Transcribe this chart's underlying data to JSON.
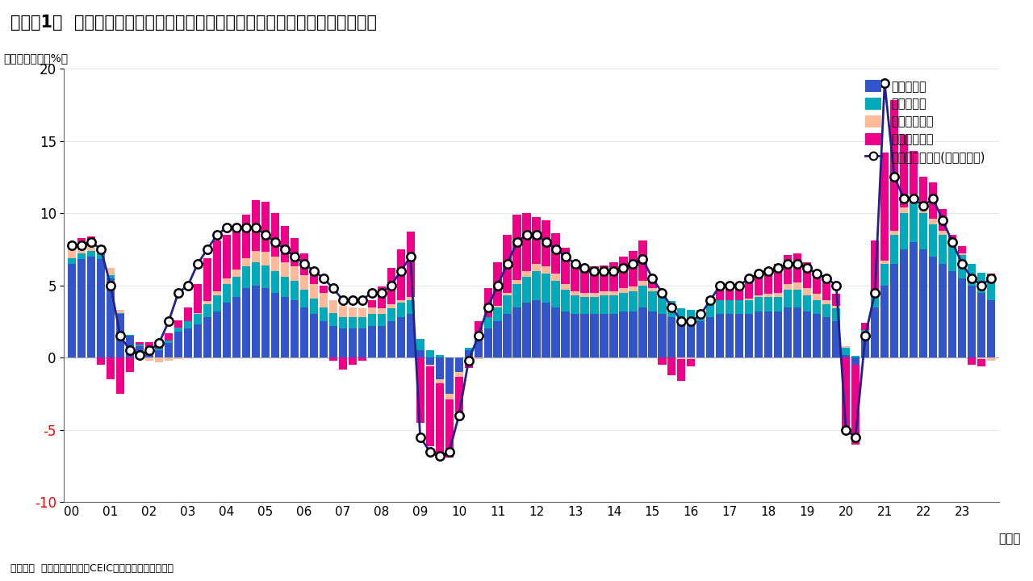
{
  "title": "（図表1）  米国経済におけるグロス付加価値増加率とその分配面からの寄与度",
  "ylabel": "（前年同期比、%）",
  "xlabel_suffix": "（年）",
  "source": "（出所）  米国商務省資料やCEICよりインベスコが推計",
  "legend_labels": [
    "労働コスト",
    "資本コスト",
    "利払いコスト",
    "税引き前利益",
    "グロス付加価値(金融を除く)"
  ],
  "colors": {
    "labor": "#3355CC",
    "capital": "#00AABB",
    "interest": "#FFBB99",
    "profit": "#EE0088",
    "line": "#222288"
  },
  "ylim": [
    -10,
    20
  ],
  "yticks": [
    -10,
    -5,
    0,
    5,
    10,
    15,
    20
  ],
  "years": [
    "00",
    "01",
    "02",
    "03",
    "04",
    "05",
    "06",
    "07",
    "08",
    "09",
    "10",
    "11",
    "12",
    "13",
    "14",
    "15",
    "16",
    "17",
    "18",
    "19",
    "20",
    "21",
    "22",
    "23"
  ],
  "n_bars": 96,
  "labor": [
    6.5,
    6.8,
    7.0,
    6.8,
    5.5,
    3.0,
    1.5,
    0.8,
    0.5,
    0.5,
    1.0,
    1.8,
    2.0,
    2.3,
    2.8,
    3.2,
    3.8,
    4.2,
    4.8,
    5.0,
    4.8,
    4.5,
    4.2,
    4.0,
    3.5,
    3.0,
    2.5,
    2.2,
    2.0,
    2.0,
    2.0,
    2.2,
    2.2,
    2.5,
    2.8,
    3.0,
    0.5,
    -0.5,
    -1.5,
    -2.5,
    -1.0,
    0.5,
    1.2,
    2.0,
    2.5,
    3.0,
    3.5,
    3.8,
    4.0,
    3.8,
    3.5,
    3.2,
    3.0,
    3.0,
    3.0,
    3.0,
    3.0,
    3.2,
    3.2,
    3.5,
    3.2,
    3.0,
    2.8,
    2.5,
    2.5,
    2.5,
    2.8,
    3.0,
    3.0,
    3.0,
    3.0,
    3.2,
    3.2,
    3.2,
    3.5,
    3.5,
    3.2,
    3.0,
    2.8,
    2.5,
    0.2,
    -0.5,
    1.5,
    3.5,
    5.0,
    6.5,
    7.5,
    8.0,
    7.5,
    7.0,
    6.5,
    6.0,
    5.5,
    5.0,
    4.5,
    4.0
  ],
  "capital": [
    0.4,
    0.4,
    0.4,
    0.4,
    0.2,
    0.1,
    0.1,
    0.1,
    0.1,
    0.1,
    0.2,
    0.3,
    0.5,
    0.7,
    0.9,
    1.1,
    1.3,
    1.4,
    1.5,
    1.6,
    1.6,
    1.5,
    1.4,
    1.3,
    1.2,
    1.1,
    1.0,
    0.9,
    0.8,
    0.8,
    0.8,
    0.8,
    0.8,
    0.9,
    1.0,
    1.0,
    0.8,
    0.5,
    0.2,
    0.0,
    0.0,
    0.2,
    0.5,
    0.8,
    1.0,
    1.3,
    1.6,
    1.8,
    2.0,
    2.0,
    1.8,
    1.5,
    1.3,
    1.2,
    1.2,
    1.3,
    1.3,
    1.3,
    1.4,
    1.5,
    1.4,
    1.3,
    1.1,
    0.9,
    0.8,
    0.8,
    0.9,
    1.0,
    1.0,
    1.0,
    1.0,
    1.0,
    1.0,
    1.0,
    1.2,
    1.2,
    1.1,
    1.0,
    0.9,
    0.9,
    0.5,
    0.1,
    0.4,
    1.0,
    1.5,
    2.0,
    2.5,
    2.8,
    2.5,
    2.2,
    2.0,
    1.8,
    1.6,
    1.5,
    1.4,
    1.3
  ],
  "interest": [
    0.8,
    0.8,
    0.7,
    0.6,
    0.5,
    0.2,
    0.0,
    -0.1,
    -0.2,
    -0.3,
    -0.2,
    -0.1,
    0.0,
    0.1,
    0.2,
    0.3,
    0.4,
    0.5,
    0.6,
    0.8,
    0.9,
    1.0,
    1.0,
    1.0,
    1.0,
    1.0,
    1.0,
    0.9,
    0.8,
    0.7,
    0.6,
    0.5,
    0.4,
    0.3,
    0.2,
    0.2,
    0.0,
    -0.1,
    -0.3,
    -0.4,
    -0.3,
    -0.2,
    -0.1,
    0.0,
    0.1,
    0.2,
    0.3,
    0.4,
    0.5,
    0.5,
    0.5,
    0.4,
    0.3,
    0.3,
    0.3,
    0.3,
    0.3,
    0.3,
    0.3,
    0.3,
    0.2,
    0.1,
    0.0,
    -0.1,
    -0.1,
    0.0,
    0.0,
    0.0,
    0.0,
    0.0,
    0.1,
    0.1,
    0.2,
    0.3,
    0.4,
    0.5,
    0.5,
    0.4,
    0.3,
    0.2,
    0.1,
    0.0,
    0.0,
    0.1,
    0.2,
    0.3,
    0.4,
    0.5,
    0.5,
    0.4,
    0.3,
    0.2,
    0.1,
    0.0,
    -0.1,
    -0.2
  ],
  "profit": [
    0.3,
    0.3,
    0.3,
    -0.5,
    -1.5,
    -2.5,
    -1.0,
    0.2,
    0.5,
    0.5,
    0.5,
    0.5,
    1.0,
    2.0,
    3.0,
    3.5,
    3.0,
    3.0,
    3.0,
    3.5,
    3.5,
    3.0,
    2.5,
    2.0,
    1.5,
    1.0,
    0.5,
    -0.2,
    -0.8,
    -0.5,
    -0.2,
    0.5,
    1.5,
    2.5,
    3.5,
    4.5,
    -4.5,
    -5.5,
    -5.0,
    -4.0,
    -2.5,
    -0.5,
    0.8,
    2.0,
    3.0,
    4.0,
    4.5,
    4.0,
    3.2,
    3.2,
    2.8,
    2.5,
    1.8,
    1.8,
    1.8,
    1.8,
    2.0,
    2.2,
    2.5,
    2.8,
    0.5,
    -0.5,
    -1.2,
    -1.5,
    -0.5,
    0.0,
    0.5,
    0.8,
    0.8,
    1.0,
    1.2,
    1.5,
    1.8,
    2.0,
    2.0,
    2.0,
    1.8,
    1.5,
    1.2,
    0.8,
    -5.0,
    -5.5,
    0.5,
    3.5,
    7.5,
    9.0,
    5.0,
    3.0,
    2.0,
    2.5,
    1.5,
    0.5,
    0.5,
    -0.5,
    -0.5,
    0.5
  ],
  "gva_line": [
    7.8,
    7.8,
    8.0,
    7.5,
    5.0,
    1.5,
    0.5,
    0.2,
    0.5,
    1.0,
    2.5,
    4.5,
    5.0,
    6.5,
    7.5,
    8.5,
    9.0,
    9.0,
    9.0,
    9.0,
    8.5,
    8.0,
    7.5,
    7.0,
    6.5,
    6.0,
    5.5,
    4.8,
    4.0,
    4.0,
    4.0,
    4.5,
    4.5,
    5.0,
    6.0,
    7.0,
    -5.5,
    -6.5,
    -6.8,
    -6.5,
    -4.0,
    -0.2,
    1.5,
    3.5,
    5.0,
    6.5,
    8.0,
    8.5,
    8.5,
    8.0,
    7.5,
    7.0,
    6.5,
    6.2,
    6.0,
    6.0,
    6.0,
    6.2,
    6.5,
    6.8,
    5.5,
    4.5,
    3.5,
    2.5,
    2.5,
    3.0,
    4.0,
    5.0,
    5.0,
    5.0,
    5.5,
    5.8,
    6.0,
    6.2,
    6.5,
    6.5,
    6.2,
    5.8,
    5.5,
    5.0,
    -5.0,
    -5.5,
    1.5,
    4.5,
    19.0,
    12.5,
    11.0,
    11.0,
    10.5,
    11.0,
    9.5,
    8.0,
    6.5,
    5.5,
    5.0,
    5.5
  ]
}
